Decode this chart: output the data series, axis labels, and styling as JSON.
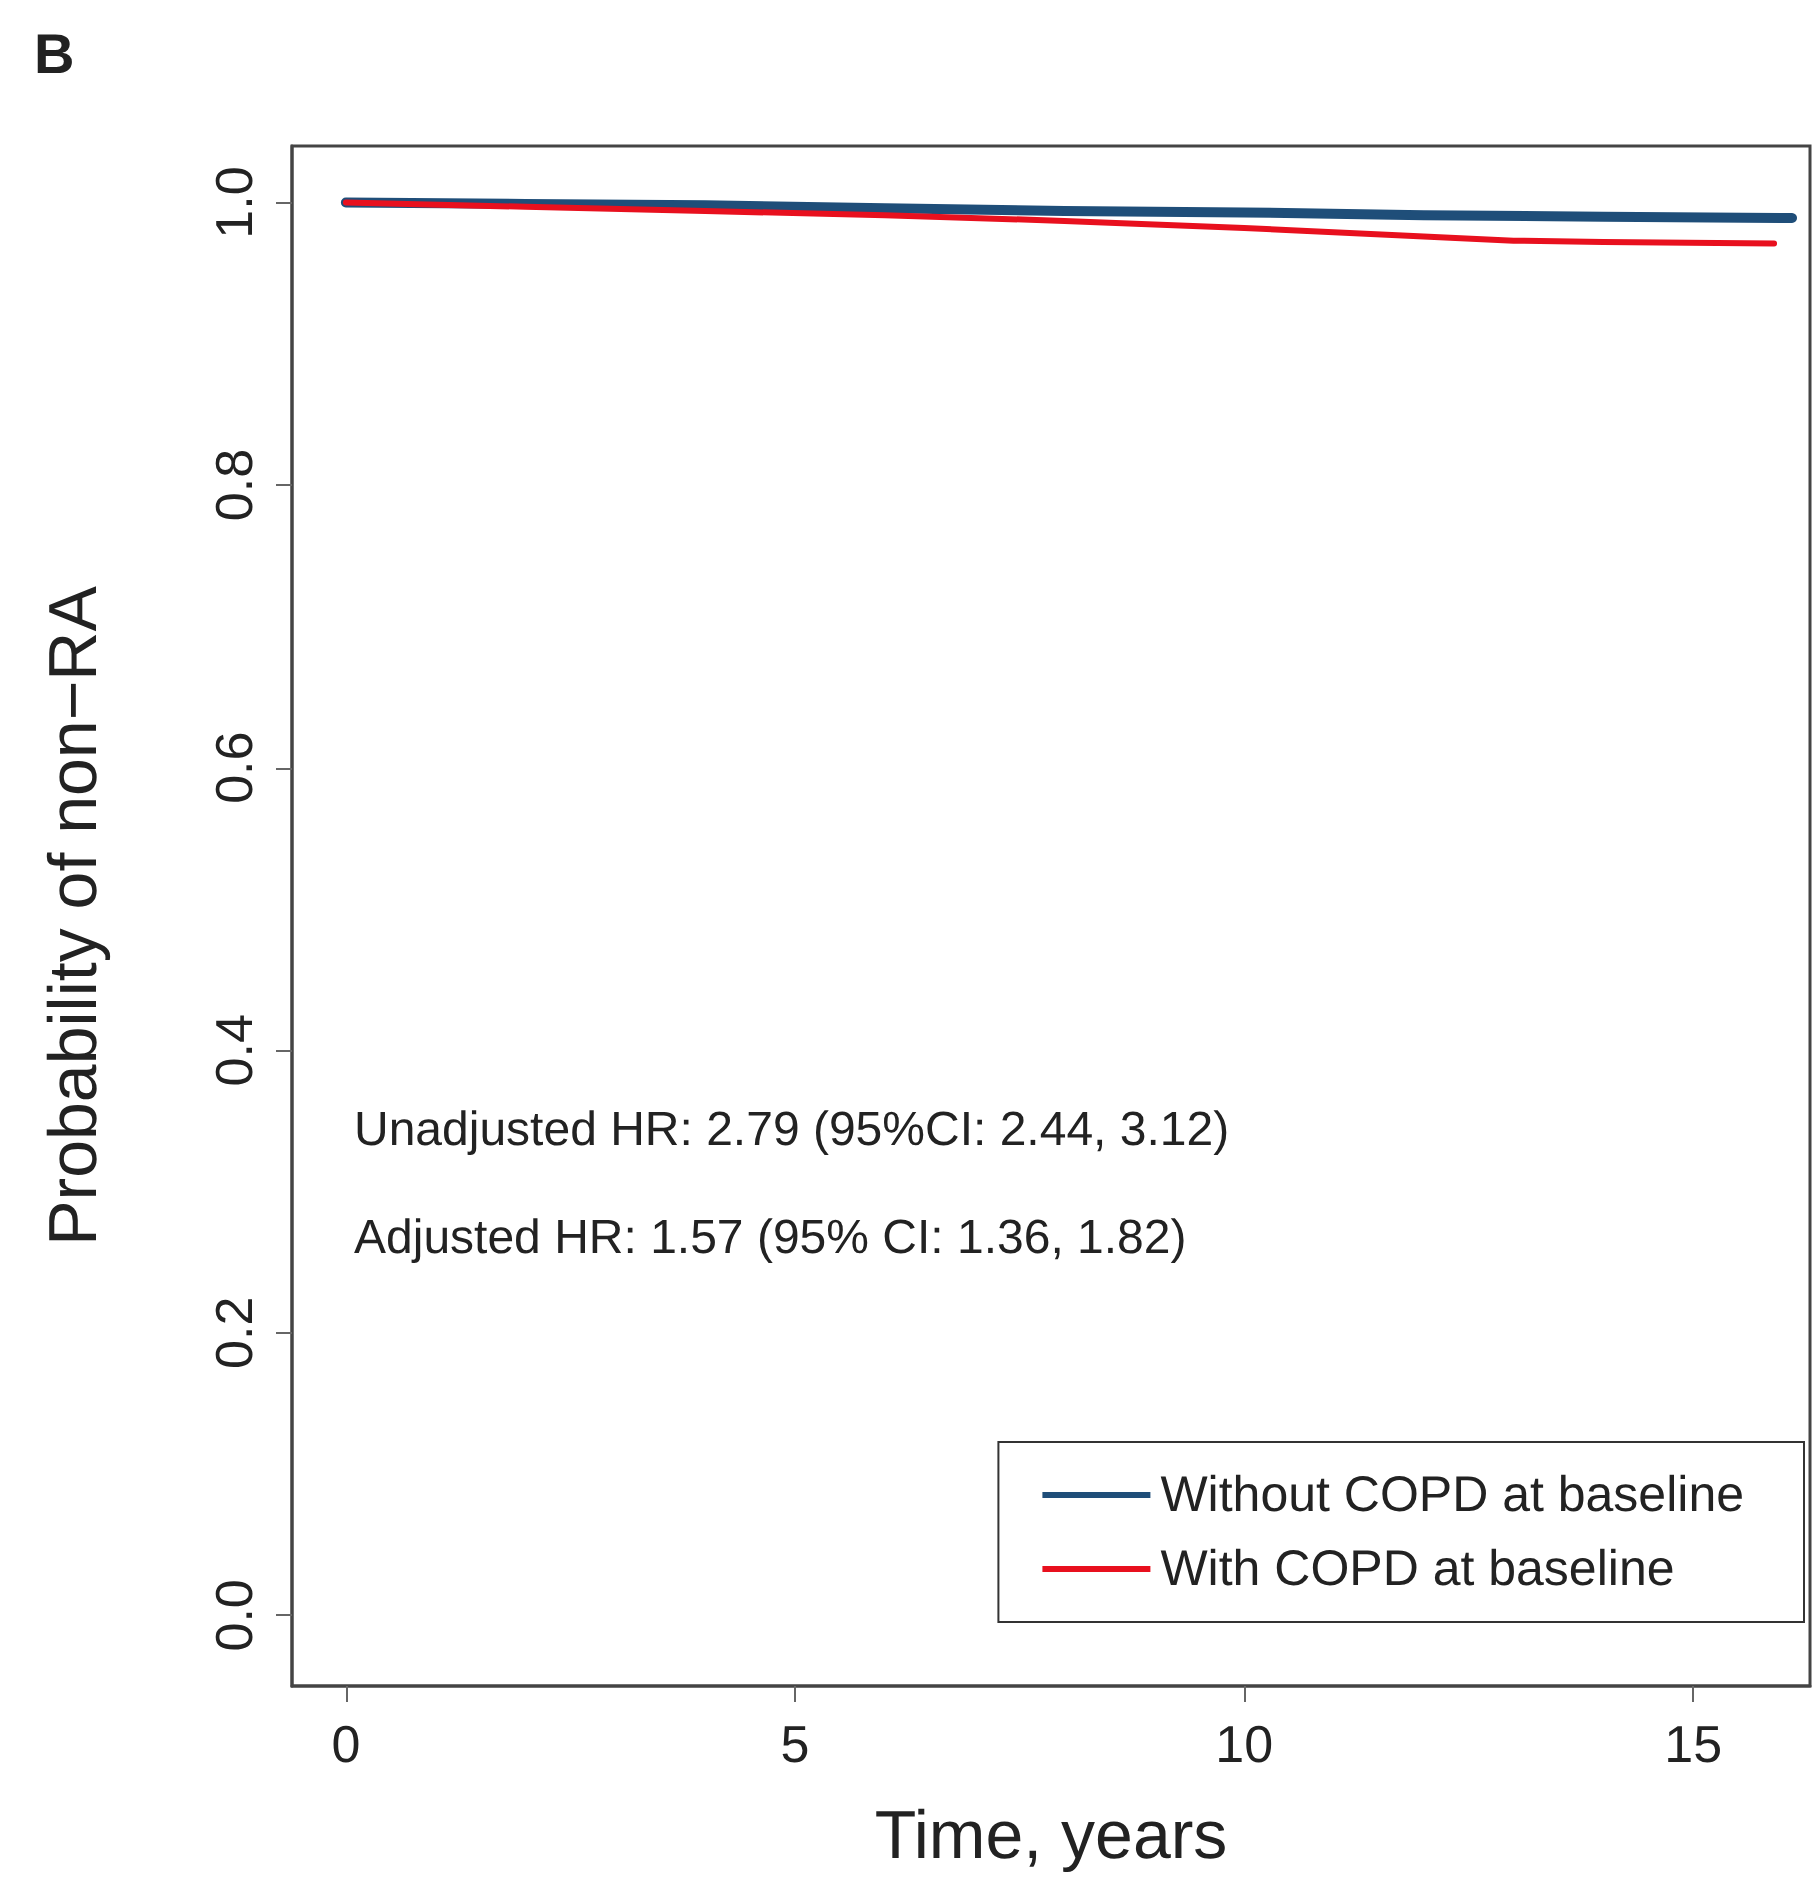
{
  "chart_data": {
    "type": "line",
    "title": "B",
    "xlabel": "Time, years",
    "ylabel": "Probability of non−RA",
    "xlim": [
      -0.6,
      16.3
    ],
    "xticks": [
      0,
      5,
      10,
      15
    ],
    "ylim": [
      -0.05,
      1.04
    ],
    "yticks": [
      {
        "value": 0,
        "label": "0.0"
      },
      0.2,
      0.4,
      0.6,
      0.8,
      {
        "value": 1,
        "label": "1.0"
      }
    ],
    "grid": false,
    "legend": "bottom right",
    "marker": "none",
    "line_style": "solid",
    "annotations": [
      "Unadjusted HR: 2.79 (95%CI: 2.44, 3.12)",
      "Adjusted HR: 1.57 (95% CI: 1.36, 1.82)"
    ],
    "series": [
      {
        "name": "Without COPD at baseline",
        "color": "#1f4e79",
        "x": [
          0,
          2,
          4,
          6,
          8,
          10,
          12,
          14,
          16.1
        ],
        "values": [
          1.0,
          0.999,
          0.998,
          0.996,
          0.994,
          0.993,
          0.991,
          0.99,
          0.989
        ]
      },
      {
        "name": "With COPD at baseline",
        "color": "#e8101e",
        "x": [
          0,
          2,
          4,
          6,
          8,
          10,
          12,
          13,
          14,
          15.9
        ],
        "values": [
          1.0,
          0.997,
          0.994,
          0.991,
          0.987,
          0.982,
          0.976,
          0.973,
          0.972,
          0.971
        ]
      }
    ]
  }
}
